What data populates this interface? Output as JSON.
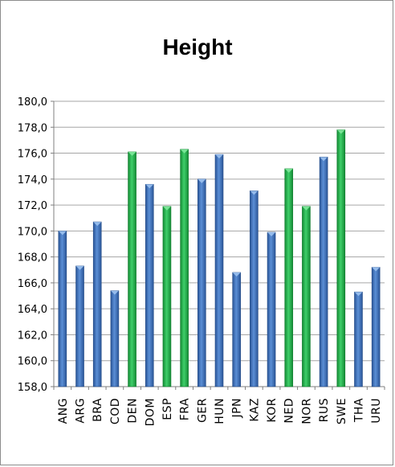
{
  "chart_data": {
    "type": "bar",
    "title": "Height",
    "xlabel": "",
    "ylabel": "",
    "ylim": [
      158,
      180
    ],
    "ytick_step": 2,
    "ytick_labels": [
      "158,0",
      "160,0",
      "162,0",
      "164,0",
      "166,0",
      "168,0",
      "170,0",
      "172,0",
      "174,0",
      "176,0",
      "178,0",
      "180,0"
    ],
    "grid": true,
    "legend": "none",
    "categories": [
      "ANG",
      "ARG",
      "BRA",
      "COD",
      "DEN",
      "DOM",
      "ESP",
      "FRA",
      "GER",
      "HUN",
      "JPN",
      "KAZ",
      "KOR",
      "NED",
      "NOR",
      "RUS",
      "SWE",
      "THA",
      "URU"
    ],
    "values": [
      170.0,
      167.3,
      170.7,
      165.4,
      176.1,
      173.6,
      171.9,
      176.3,
      174.0,
      175.9,
      166.8,
      173.1,
      169.9,
      174.8,
      171.9,
      175.7,
      177.8,
      165.3,
      167.2
    ],
    "highlighted": [
      "DEN",
      "ESP",
      "FRA",
      "NED",
      "NOR",
      "SWE"
    ],
    "colors": {
      "default": "#3d6eb4",
      "highlight": "#21a846",
      "grid": "#a6a6a6",
      "axis": "#7f7f7f"
    }
  }
}
